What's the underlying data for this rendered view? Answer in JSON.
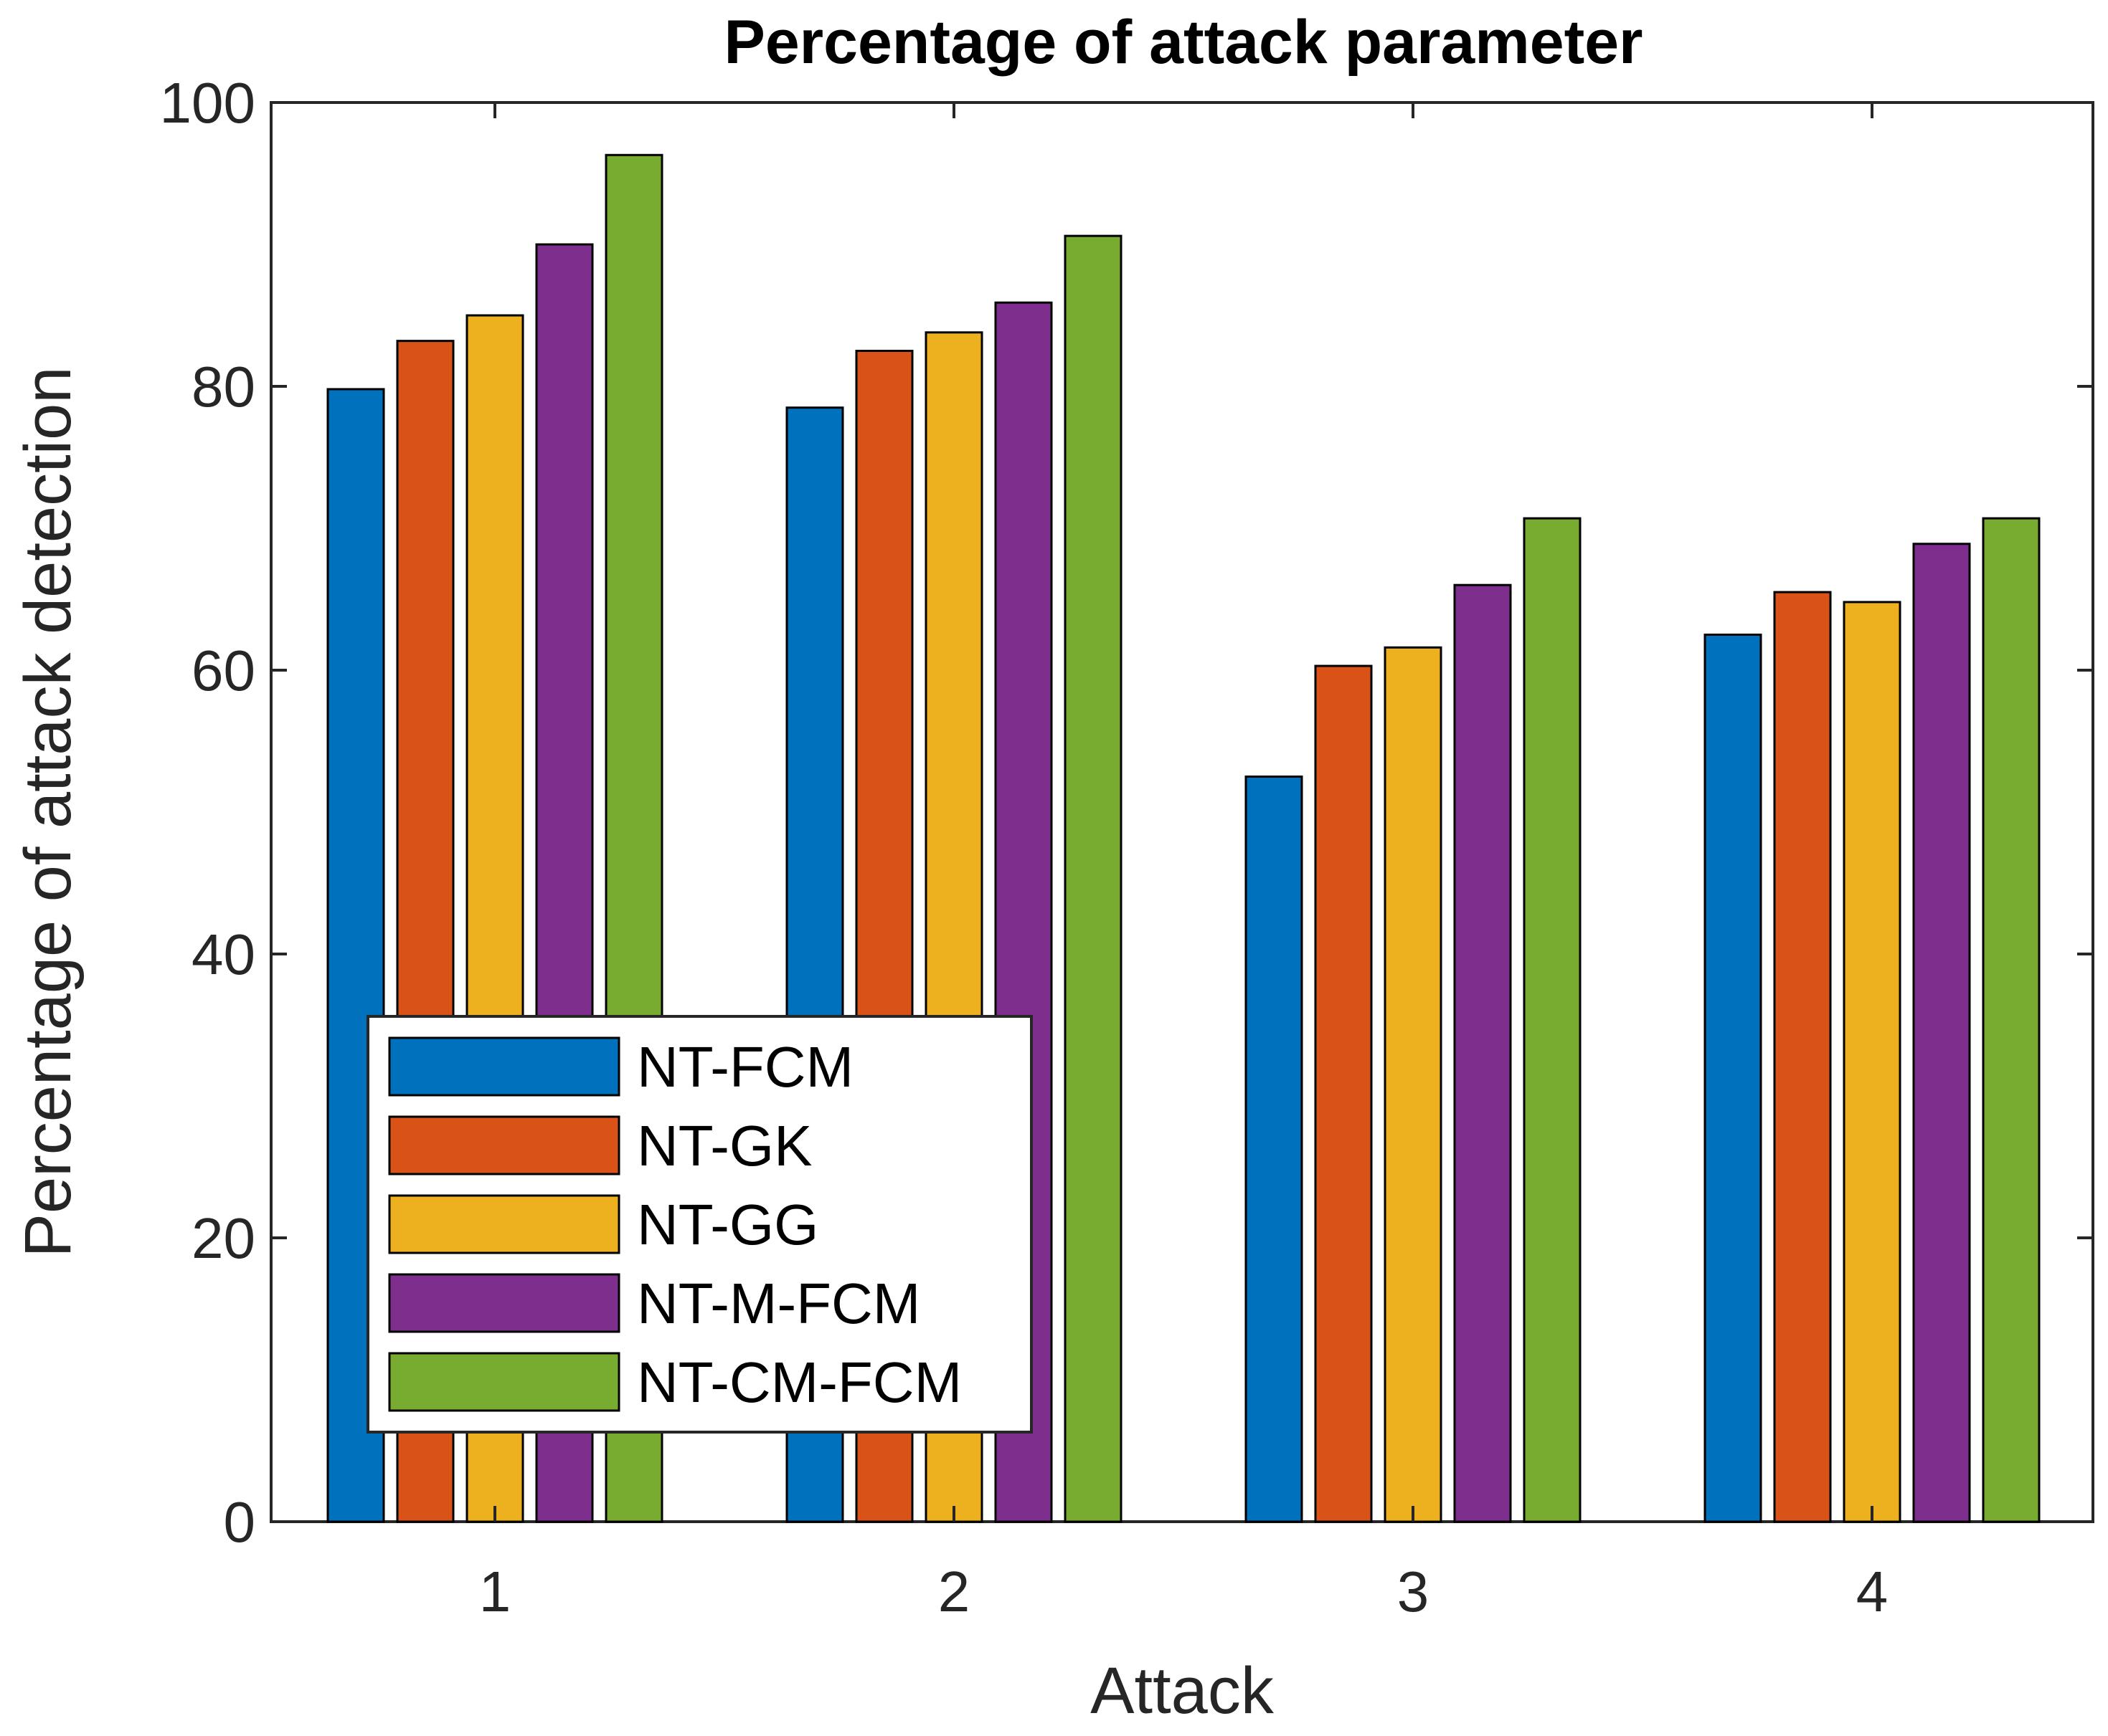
{
  "chart_data": {
    "type": "bar",
    "title": "Percentage of attack parameter",
    "xlabel": "Attack",
    "ylabel": "Percentage of attack detection",
    "categories": [
      "1",
      "2",
      "3",
      "4"
    ],
    "ylim": [
      0,
      100
    ],
    "yticks": [
      "0",
      "20",
      "40",
      "60",
      "80",
      "100"
    ],
    "grid": false,
    "legend_position": "bottom-left",
    "series": [
      {
        "name": "NT-FCM",
        "color": "#0072BD",
        "values": [
          79.8,
          78.5,
          52.5,
          62.5
        ]
      },
      {
        "name": "NT-GK",
        "color": "#D95319",
        "values": [
          83.2,
          82.5,
          60.3,
          65.5
        ]
      },
      {
        "name": "NT-GG",
        "color": "#EDB120",
        "values": [
          85.0,
          83.8,
          61.6,
          64.8
        ]
      },
      {
        "name": "NT-M-FCM",
        "color": "#7E2F8E",
        "values": [
          90.0,
          85.9,
          66.0,
          68.9
        ]
      },
      {
        "name": "NT-CM-FCM",
        "color": "#77AC30",
        "values": [
          96.3,
          90.6,
          70.7,
          70.7
        ]
      }
    ]
  }
}
